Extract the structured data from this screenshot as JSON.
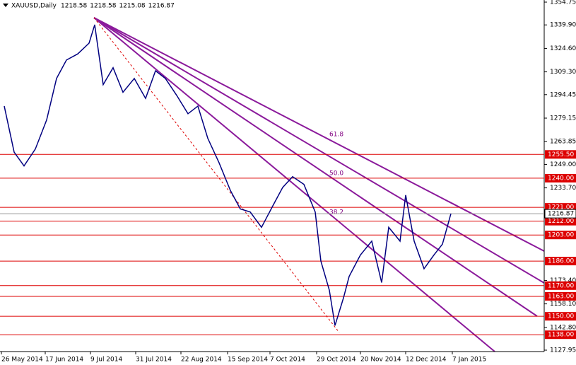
{
  "chart_data": {
    "type": "line",
    "symbol": "XAUUSD,Daily",
    "header_values": [
      1218.58,
      1218.58,
      1215.08,
      1216.87
    ],
    "x": [
      1,
      4.5,
      8,
      12,
      16,
      19.5,
      23,
      27,
      31,
      33,
      36,
      39.5,
      43,
      47,
      51,
      54.5,
      58,
      62,
      66,
      69.5,
      73,
      77,
      81,
      84.5,
      88,
      92,
      96,
      99.5,
      103,
      107,
      111,
      113,
      116,
      118,
      121,
      123,
      127,
      131,
      134.5,
      137,
      141,
      143,
      146,
      149.5,
      153,
      156,
      159
    ],
    "series": [
      {
        "color": "#000080",
        "values": [
          1287,
          1257,
          1248,
          1259,
          1278,
          1305,
          1317,
          1321,
          1328,
          1340,
          1301,
          1312,
          1296,
          1305,
          1292,
          1310,
          1305,
          1294,
          1282,
          1287,
          1266,
          1250,
          1232,
          1220,
          1218,
          1208,
          1222,
          1234,
          1241,
          1236,
          1218,
          1186,
          1167,
          1144,
          1162,
          1176,
          1190,
          1199,
          1172,
          1208,
          1199,
          1229,
          1199,
          1181,
          1190,
          1197,
          1216.87
        ]
      }
    ],
    "xlim": [
      -0.5,
      192
    ],
    "xticks": [
      {
        "value": 0,
        "label": "26 May 2014"
      },
      {
        "value": 15.5,
        "label": "17 Jun 2014"
      },
      {
        "value": 31.5,
        "label": "9 Jul 2014"
      },
      {
        "value": 47.5,
        "label": "31 Jul 2014"
      },
      {
        "value": 63.5,
        "label": "22 Aug 2014"
      },
      {
        "value": 80,
        "label": "15 Sep 2014"
      },
      {
        "value": 95,
        "label": "7 Oct 2014"
      },
      {
        "value": 111.5,
        "label": "29 Oct 2014"
      },
      {
        "value": 127,
        "label": "20 Nov 2014"
      },
      {
        "value": 143,
        "label": "12 Dec 2014"
      },
      {
        "value": 159.5,
        "label": "7 Jan 2015"
      }
    ],
    "ylim": [
      1127.03,
      1356.13
    ],
    "yticks": [
      {
        "value": 1354.75,
        "label": "1354.75"
      },
      {
        "value": 1339.9,
        "label": "1339.90"
      },
      {
        "value": 1324.6,
        "label": "1324.60"
      },
      {
        "value": 1309.3,
        "label": "1309.30"
      },
      {
        "value": 1294.45,
        "label": "1294.45"
      },
      {
        "value": 1279.15,
        "label": "1279.15"
      },
      {
        "value": 1263.85,
        "label": "1263.85"
      },
      {
        "value": 1249.0,
        "label": "1249.00"
      },
      {
        "value": 1233.7,
        "label": "1233.70"
      },
      {
        "value": 1173.4,
        "label": "1173.40"
      },
      {
        "value": 1158.1,
        "label": "1158.10"
      },
      {
        "value": 1142.8,
        "label": "1142.80"
      },
      {
        "value": 1127.95,
        "label": "1127.95"
      }
    ],
    "levels_color": "#dd0000",
    "levels": [
      {
        "value": 1255.5,
        "label": "1255.50"
      },
      {
        "value": 1240.0,
        "label": "1240.00"
      },
      {
        "value": 1221.0,
        "label": "1221.00"
      },
      {
        "value": 1212.0,
        "label": "1212.00"
      },
      {
        "value": 1203.0,
        "label": "1203.00"
      },
      {
        "value": 1186.0,
        "label": "1186.00"
      },
      {
        "value": 1170.0,
        "label": "1170.00"
      },
      {
        "value": 1163.0,
        "label": "1163.00"
      },
      {
        "value": 1150.0,
        "label": "1150.00"
      },
      {
        "value": 1138.0,
        "label": "1138.00"
      }
    ],
    "current_price": 1216.87,
    "annotations": [
      "61.8",
      "50.0",
      "38.2"
    ]
  }
}
